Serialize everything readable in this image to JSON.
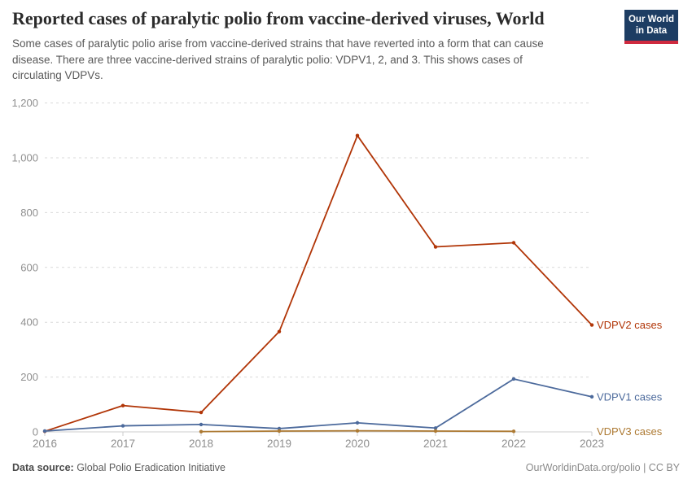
{
  "header": {
    "title": "Reported cases of paralytic polio from vaccine-derived viruses, World",
    "subtitle": "Some cases of paralytic polio arise from vaccine-derived strains that have reverted into a form that can cause disease. There are three vaccine-derived strains of paralytic polio: VDPV1, 2, and 3. This shows cases of circulating VDPVs.",
    "logo": {
      "line1": "Our World",
      "line2": "in Data",
      "bg_color": "#1d3d63",
      "accent_color": "#cf2a3f"
    }
  },
  "chart_data": {
    "type": "line",
    "title": "Reported cases of paralytic polio from vaccine-derived viruses, World",
    "xlabel": "",
    "ylabel": "",
    "x": [
      2016,
      2017,
      2018,
      2019,
      2020,
      2021,
      2022,
      2023
    ],
    "ylim": [
      0,
      1200
    ],
    "yticks": [
      {
        "value": 0,
        "label": "0"
      },
      {
        "value": 200,
        "label": "200"
      },
      {
        "value": 400,
        "label": "400"
      },
      {
        "value": 600,
        "label": "600"
      },
      {
        "value": 800,
        "label": "800"
      },
      {
        "value": 1000,
        "label": "1,000"
      },
      {
        "value": 1200,
        "label": "1,200"
      }
    ],
    "grid": "horizontal-dashed",
    "legend_position": "end-of-line-labels",
    "series": [
      {
        "name": "VDPV2 cases",
        "color": "#b13507",
        "x": [
          2016,
          2017,
          2018,
          2019,
          2020,
          2021,
          2022,
          2023
        ],
        "values": [
          2,
          96,
          71,
          366,
          1081,
          675,
          690,
          390
        ]
      },
      {
        "name": "VDPV1 cases",
        "color": "#4c6a9c",
        "x": [
          2016,
          2017,
          2018,
          2019,
          2020,
          2021,
          2022,
          2023
        ],
        "values": [
          3,
          22,
          27,
          12,
          33,
          14,
          193,
          128
        ]
      },
      {
        "name": "VDPV3 cases",
        "color": "#ad7a33",
        "x": [
          2018,
          2019,
          2020,
          2021,
          2022
        ],
        "values": [
          1,
          3,
          4,
          3,
          2
        ]
      }
    ],
    "axis_color": "#cccccc",
    "gridline_color": "#dadada",
    "tick_label_color": "#8f8f8f"
  },
  "footer": {
    "source_label": "Data source:",
    "source_value": " Global Polio Eradication Initiative",
    "link": "OurWorldinData.org/polio | CC BY"
  }
}
